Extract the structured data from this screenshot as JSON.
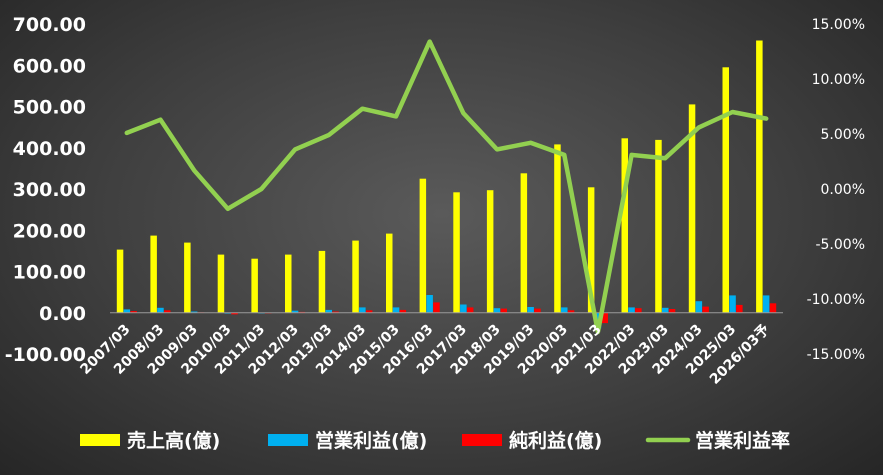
{
  "chart_data": {
    "type": "bar",
    "categories": [
      "2007/03",
      "2008/03",
      "2009/03",
      "2010/03",
      "2011/03",
      "2012/03",
      "2013/03",
      "2014/03",
      "2015/03",
      "2016/03",
      "2017/03",
      "2018/03",
      "2019/03",
      "2020/03",
      "2021/03",
      "2022/03",
      "2023/03",
      "2024/03",
      "2025/03",
      "2026/03予"
    ],
    "series": [
      {
        "name": "売上高(億)",
        "axis": "left",
        "kind": "bar",
        "color": "#ffff00",
        "values": [
          153,
          187,
          170,
          141,
          131,
          141,
          150,
          175,
          192,
          325,
          292,
          297,
          338,
          408,
          304,
          423,
          419,
          505,
          595,
          660
        ]
      },
      {
        "name": "営業利益(億)",
        "axis": "left",
        "kind": "bar",
        "color": "#00b0f0",
        "values": [
          8,
          12,
          3,
          -2,
          0,
          5,
          7,
          13,
          13,
          43,
          20,
          11,
          14,
          13,
          -38,
          13,
          12,
          28,
          42,
          42
        ]
      },
      {
        "name": "純利益(億)",
        "axis": "left",
        "kind": "bar",
        "color": "#ff0000",
        "values": [
          4,
          6,
          1,
          -4,
          -1,
          2,
          3,
          6,
          7,
          25,
          13,
          10,
          10,
          6,
          -25,
          11,
          9,
          15,
          19,
          23
        ]
      },
      {
        "name": "営業利益率",
        "axis": "right",
        "kind": "line",
        "color": "#92d050",
        "values": [
          5.1,
          6.3,
          1.7,
          -1.8,
          0.0,
          3.6,
          4.9,
          7.3,
          6.6,
          13.4,
          6.9,
          3.6,
          4.2,
          3.1,
          -13.0,
          3.1,
          2.8,
          5.6,
          7.0,
          6.4
        ]
      }
    ],
    "y_left": {
      "min": -100,
      "max": 700,
      "step": 100,
      "tick_labels": [
        "-100.00",
        "0.00",
        "100.00",
        "200.00",
        "300.00",
        "400.00",
        "500.00",
        "600.00",
        "700.00"
      ]
    },
    "y_right": {
      "min": -15,
      "max": 15,
      "step": 5,
      "tick_labels": [
        "-15.00%",
        "-10.00%",
        "-5.00%",
        "0.00%",
        "5.00%",
        "10.00%",
        "15.00%"
      ]
    },
    "title": "",
    "xlabel": "",
    "ylabel": "",
    "grid": false,
    "legend_position": "bottom"
  }
}
